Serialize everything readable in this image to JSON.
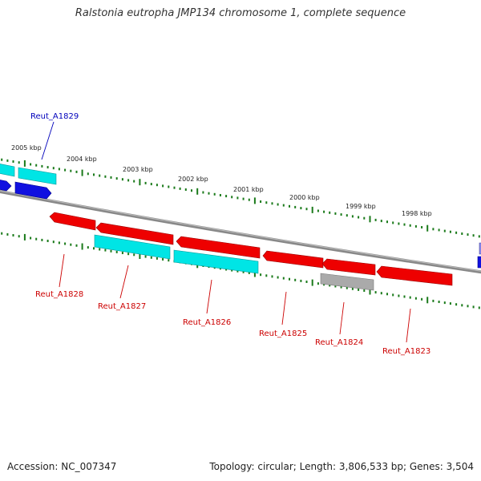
{
  "title": "Ralstonia eutropha JMP134 chromosome 1, complete sequence",
  "footer": {
    "accession": "Accession: NC_007347",
    "summary": "Topology: circular; Length: 3,806,533 bp; Genes: 3,504"
  },
  "colors": {
    "cyan": "#00e5e5",
    "blue": "#1010e0",
    "red": "#ee0000",
    "grey": "#aaaaaa",
    "tick": "#1a7a1a",
    "backbone": "#888888",
    "label_red": "#cc0000",
    "label_blue": "#0000bb"
  },
  "kbp_labels": [
    "2005 kbp",
    "2004 kbp",
    "2003 kbp",
    "2002 kbp",
    "2001 kbp",
    "2000 kbp",
    "1999 kbp",
    "1998 kbp"
  ],
  "genes": [
    {
      "name": "Reut_A1829",
      "color": "blue"
    },
    {
      "name": "Reut_A1828",
      "color": "red"
    },
    {
      "name": "Reut_A1827",
      "color": "cyan"
    },
    {
      "name": "Reut_A1826",
      "color": "cyan"
    },
    {
      "name": "Reut_A1825",
      "color": "red"
    },
    {
      "name": "Reut_A1824",
      "color": "grey"
    },
    {
      "name": "Reut_A1823",
      "color": "red"
    }
  ]
}
